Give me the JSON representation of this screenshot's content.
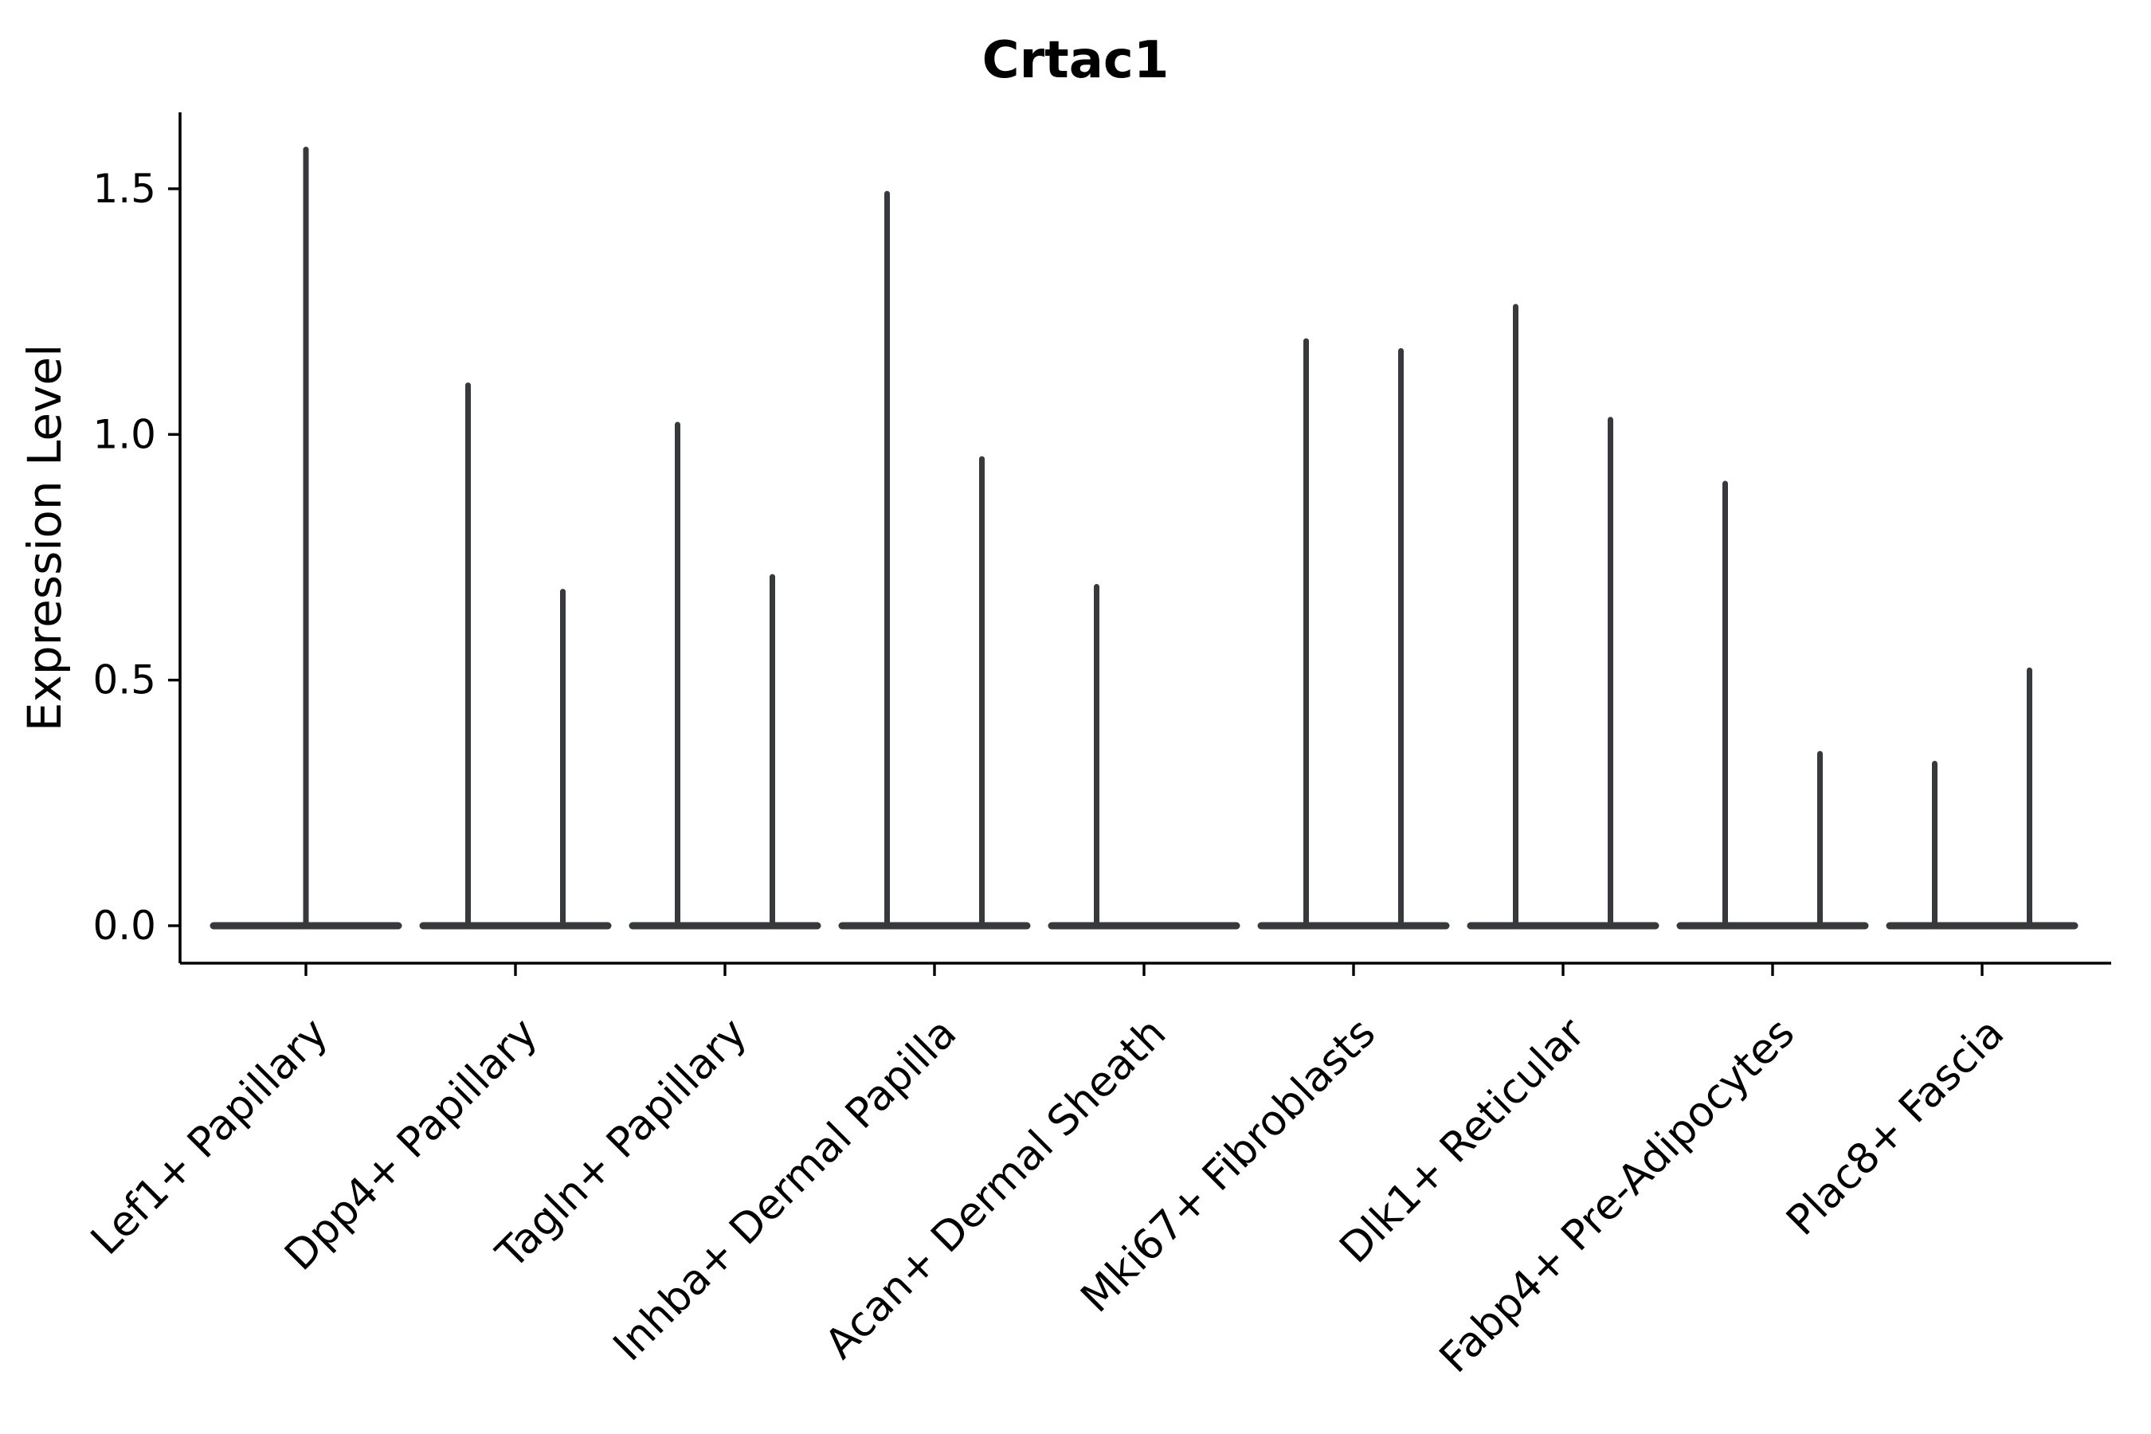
{
  "figure": {
    "background_color": "#ffffff",
    "axis_color": "#000000"
  },
  "chart_data": {
    "type": "violin",
    "title": "Crtac1",
    "xlabel": "",
    "ylabel": "Expression Level",
    "yticks": [
      0.0,
      0.5,
      1.0,
      1.5
    ],
    "ytick_labels": [
      "0.0",
      "0.5",
      "1.0",
      "1.5"
    ],
    "ylim": [
      -0.08,
      1.66
    ],
    "grid": false,
    "legend": "none",
    "violin_color": "#37393c",
    "baseline_value": 0.0,
    "categories": [
      "Lef1+ Papillary",
      "Dpp4+ Papillary",
      "Tagln+ Papillary",
      "Inhba+ Dermal Papilla",
      "Acan+ Dermal Sheath",
      "Mki67+ Fibroblasts",
      "Dlk1+ Reticular",
      "Fabp4+ Pre-Adipocytes",
      "Plac8+ Fascia"
    ],
    "violins": [
      {
        "category": "Lef1+ Papillary",
        "spikes": [
          {
            "pos": "center",
            "max": 1.58
          }
        ]
      },
      {
        "category": "Dpp4+ Papillary",
        "spikes": [
          {
            "pos": "left",
            "max": 1.1
          },
          {
            "pos": "right",
            "max": 0.68
          }
        ]
      },
      {
        "category": "Tagln+ Papillary",
        "spikes": [
          {
            "pos": "left",
            "max": 1.02
          },
          {
            "pos": "right",
            "max": 0.71
          }
        ]
      },
      {
        "category": "Inhba+ Dermal Papilla",
        "spikes": [
          {
            "pos": "left",
            "max": 1.49
          },
          {
            "pos": "right",
            "max": 0.95
          }
        ]
      },
      {
        "category": "Acan+ Dermal Sheath",
        "spikes": [
          {
            "pos": "left",
            "max": 0.69
          }
        ]
      },
      {
        "category": "Mki67+ Fibroblasts",
        "spikes": [
          {
            "pos": "left",
            "max": 1.19
          },
          {
            "pos": "right",
            "max": 1.17
          }
        ]
      },
      {
        "category": "Dlk1+ Reticular",
        "spikes": [
          {
            "pos": "left",
            "max": 1.26
          },
          {
            "pos": "right",
            "max": 1.03
          }
        ]
      },
      {
        "category": "Fabp4+ Pre-Adipocytes",
        "spikes": [
          {
            "pos": "left",
            "max": 0.9
          },
          {
            "pos": "right",
            "max": 0.35
          }
        ]
      },
      {
        "category": "Plac8+ Fascia",
        "spikes": [
          {
            "pos": "left",
            "max": 0.33
          },
          {
            "pos": "right",
            "max": 0.52
          }
        ]
      }
    ]
  }
}
